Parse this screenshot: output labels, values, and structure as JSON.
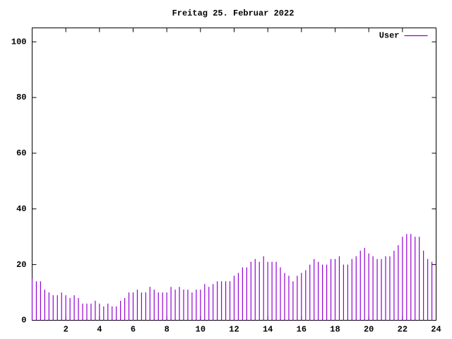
{
  "chart_data": {
    "type": "impulse",
    "title": "Freitag 25. Februar 2022",
    "x": [
      0,
      0.25,
      0.5,
      0.75,
      1,
      1.25,
      1.5,
      1.75,
      2,
      2.25,
      2.5,
      2.75,
      3,
      3.25,
      3.5,
      3.75,
      4,
      4.25,
      4.5,
      4.75,
      5,
      5.25,
      5.5,
      5.75,
      6,
      6.25,
      6.5,
      6.75,
      7,
      7.25,
      7.5,
      7.75,
      8,
      8.25,
      8.5,
      8.75,
      9,
      9.25,
      9.5,
      9.75,
      10,
      10.25,
      10.5,
      10.75,
      11,
      11.25,
      11.5,
      11.75,
      12,
      12.25,
      12.5,
      12.75,
      13,
      13.25,
      13.5,
      13.75,
      14,
      14.25,
      14.5,
      14.75,
      15,
      15.25,
      15.5,
      15.75,
      16,
      16.25,
      16.5,
      16.75,
      17,
      17.25,
      17.5,
      17.75,
      18,
      18.25,
      18.5,
      18.75,
      19,
      19.25,
      19.5,
      19.75,
      20,
      20.25,
      20.5,
      20.75,
      21,
      21.25,
      21.5,
      21.75,
      22,
      22.25,
      22.5,
      22.75,
      23,
      23.25,
      23.5,
      23.75
    ],
    "series": [
      {
        "name": "User",
        "color": "#9400d3",
        "values": [
          15,
          14,
          14,
          11,
          10,
          9,
          9,
          10,
          9,
          8,
          9,
          8,
          6,
          6,
          6,
          7,
          6,
          5,
          6,
          5,
          5,
          7,
          8,
          10,
          10,
          11,
          10,
          10,
          12,
          11,
          10,
          10,
          10,
          12,
          11,
          12,
          11,
          11,
          10,
          11,
          11,
          13,
          12,
          13,
          14,
          14,
          14,
          14,
          16,
          17,
          19,
          19,
          21,
          22,
          21,
          23,
          21,
          21,
          21,
          19,
          17,
          16,
          14,
          16,
          17,
          18,
          20,
          22,
          21,
          20,
          20,
          22,
          22,
          23,
          20,
          20,
          22,
          23,
          25,
          26,
          24,
          23,
          22,
          22,
          23,
          23,
          25,
          27,
          30,
          31,
          31,
          30,
          30,
          25,
          22,
          21
        ]
      }
    ],
    "xlim": [
      0,
      24
    ],
    "ylim": [
      0,
      105
    ],
    "xticks": [
      2,
      4,
      6,
      8,
      10,
      12,
      14,
      16,
      18,
      20,
      22,
      24
    ],
    "yticks": [
      0,
      20,
      40,
      60,
      80,
      100
    ],
    "legend": "top-right"
  }
}
